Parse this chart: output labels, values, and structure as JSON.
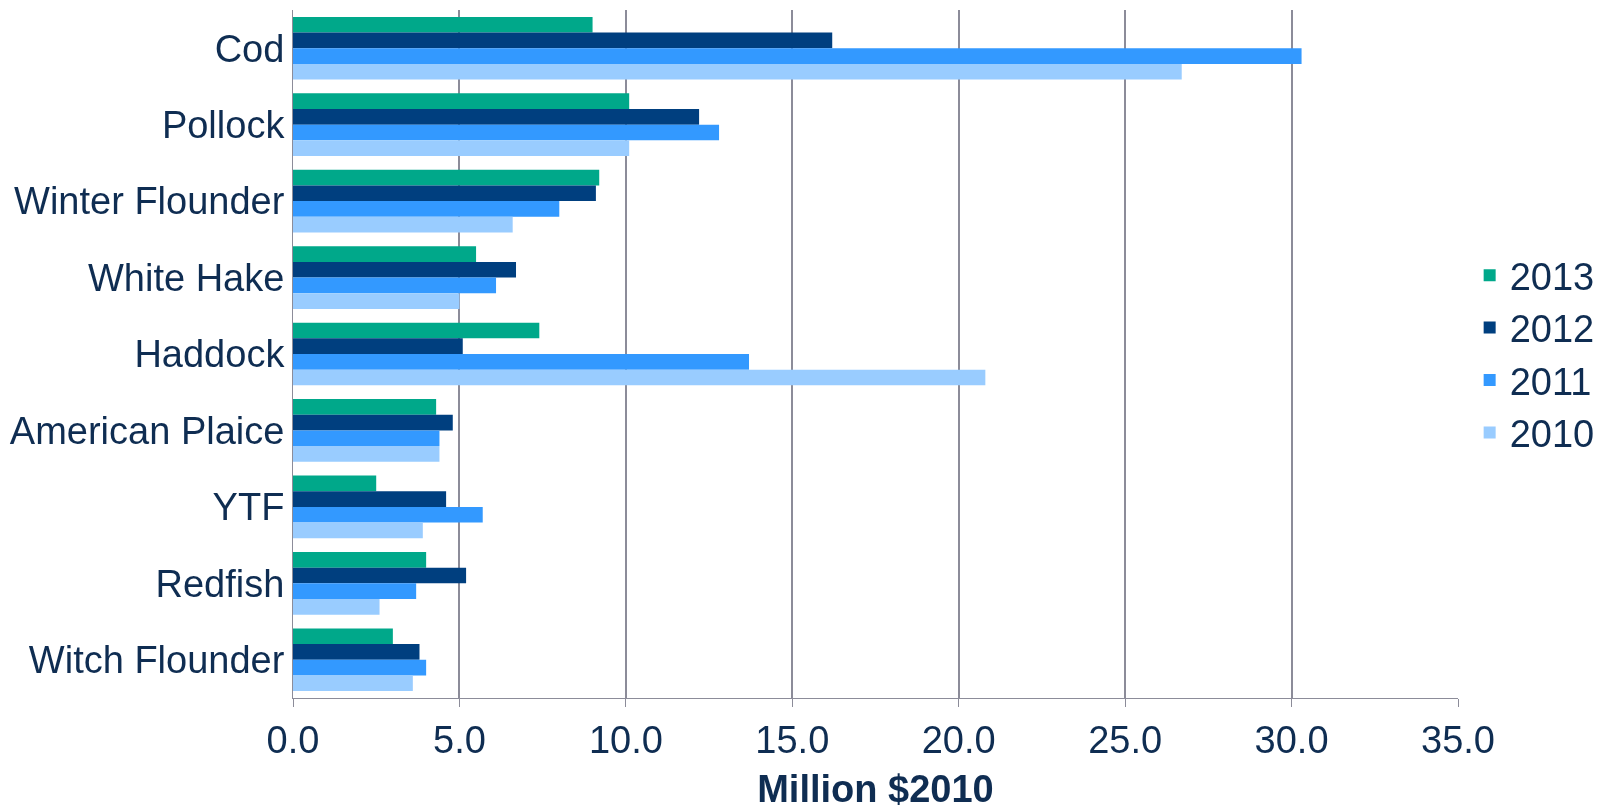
{
  "chart_data": {
    "type": "bar",
    "orientation": "horizontal",
    "xlabel": "Million $2010",
    "categories": [
      "Cod",
      "Pollock",
      "Winter Flounder",
      "White Hake",
      "Haddock",
      "American Plaice",
      "YTF",
      "Redfish",
      "Witch Flounder"
    ],
    "series": [
      {
        "name": "2013",
        "color": "#00a88a",
        "values": [
          9.0,
          10.1,
          9.2,
          5.5,
          7.4,
          4.3,
          2.5,
          4.0,
          3.0
        ]
      },
      {
        "name": "2012",
        "color": "#003f7f",
        "values": [
          16.2,
          12.2,
          9.1,
          6.7,
          5.1,
          4.8,
          4.6,
          5.2,
          3.8
        ]
      },
      {
        "name": "2011",
        "color": "#3399ff",
        "values": [
          30.3,
          12.8,
          8.0,
          6.1,
          13.7,
          4.4,
          5.7,
          3.7,
          4.0
        ]
      },
      {
        "name": "2010",
        "color": "#99ccff",
        "values": [
          26.7,
          10.1,
          6.6,
          5.0,
          20.8,
          4.4,
          3.9,
          2.6,
          3.6
        ]
      }
    ],
    "xlim": [
      0,
      35
    ],
    "xticks": [
      {
        "value": 0,
        "label": "0.0"
      },
      {
        "value": 5,
        "label": "5.0"
      },
      {
        "value": 10,
        "label": "10.0"
      },
      {
        "value": 15,
        "label": "15.0"
      },
      {
        "value": 20,
        "label": "20.0"
      },
      {
        "value": 25,
        "label": "25.0"
      },
      {
        "value": 30,
        "label": "30.0"
      },
      {
        "value": 35,
        "label": "35.0"
      }
    ],
    "grid": "x",
    "legend": "right"
  }
}
